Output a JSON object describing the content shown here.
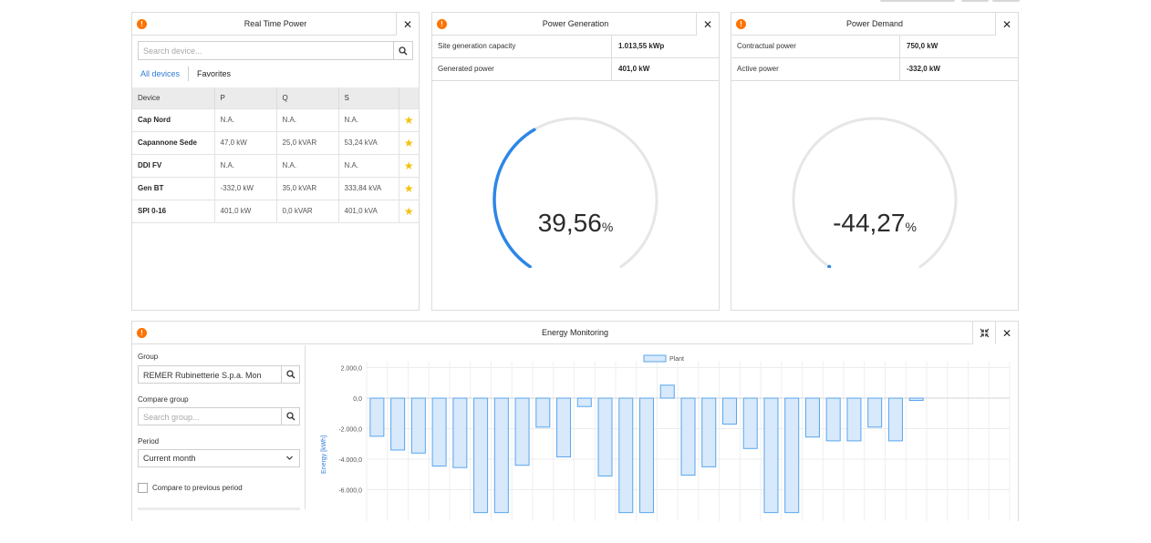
{
  "colors": {
    "accent": "#2f7bd9",
    "warning": "#ff7300",
    "gauge_track": "#e6e6e6",
    "gauge_fill": "#2d86e8",
    "bar_fill": "#d7e9fb",
    "bar_stroke": "#5aa5ee",
    "star": "#f4c20d"
  },
  "realtime": {
    "title": "Real Time Power",
    "warning_glyph": "!",
    "close_glyph": "✕",
    "search_placeholder": "Search device...",
    "tabs": [
      "All devices",
      "Favorites"
    ],
    "columns": [
      "Device",
      "P",
      "Q",
      "S"
    ],
    "rows": [
      {
        "device": "Cap Nord",
        "p": "N.A.",
        "q": "N.A.",
        "s": "N.A."
      },
      {
        "device": "Capannone Sede",
        "p": "47,0 kW",
        "q": "25,0 kVAR",
        "s": "53,24 kVA"
      },
      {
        "device": "DDI FV",
        "p": "N.A.",
        "q": "N.A.",
        "s": "N.A."
      },
      {
        "device": "Gen BT",
        "p": "-332,0 kW",
        "q": "35,0 kVAR",
        "s": "333,84 kVA"
      },
      {
        "device": "SPI 0-16",
        "p": "401,0 kW",
        "q": "0,0 kVAR",
        "s": "401,0 kVA"
      }
    ],
    "star_glyph": "★"
  },
  "generation": {
    "title": "Power Generation",
    "warning_glyph": "!",
    "close_glyph": "✕",
    "rows": [
      {
        "label": "Site generation capacity",
        "value": "1.013,55 kWp"
      },
      {
        "label": "Generated power",
        "value": "401,0 kW"
      }
    ],
    "gauge_value": "39,56",
    "gauge_unit": "%",
    "gauge_fraction": 0.3956
  },
  "demand": {
    "title": "Power Demand",
    "warning_glyph": "!",
    "close_glyph": "✕",
    "rows": [
      {
        "label": "Contractual power",
        "value": "750,0 kW"
      },
      {
        "label": "Active power",
        "value": "-332,0 kW"
      }
    ],
    "gauge_value": "-44,27",
    "gauge_unit": "%",
    "gauge_fraction": 0
  },
  "energy": {
    "title": "Energy Monitoring",
    "warning_glyph": "!",
    "close_glyph": "✕",
    "group_label": "Group",
    "group_value": "REMER Rubinetterie S.p.a. Mon",
    "compare_label": "Compare group",
    "compare_placeholder": "Search group...",
    "period_label": "Period",
    "period_value": "Current month",
    "compare_prev_label": "Compare to previous period"
  },
  "chart_data": {
    "type": "bar",
    "legend": [
      "Plant"
    ],
    "legend_position": "top-center",
    "ylabel": "Energy [kWh]",
    "yticks": [
      "2.000,0",
      "0,0",
      "-2.000,0",
      "-4.000,0",
      "-6.000,0"
    ],
    "ytick_values": [
      2000,
      0,
      -2000,
      -4000,
      -6000
    ],
    "ylim": [
      -7400,
      2600
    ],
    "grid": true,
    "series": [
      {
        "name": "Plant",
        "values": [
          -2500,
          -3400,
          -3600,
          -4450,
          -4550,
          -7500,
          -7500,
          -4400,
          -1900,
          -3850,
          -550,
          -5100,
          -7500,
          -7500,
          850,
          -5050,
          -4500,
          -1700,
          -3300,
          -7500,
          -7500,
          -2550,
          -2800,
          -2800,
          -1900,
          -2800,
          -150,
          0,
          0,
          0,
          0
        ]
      }
    ]
  }
}
